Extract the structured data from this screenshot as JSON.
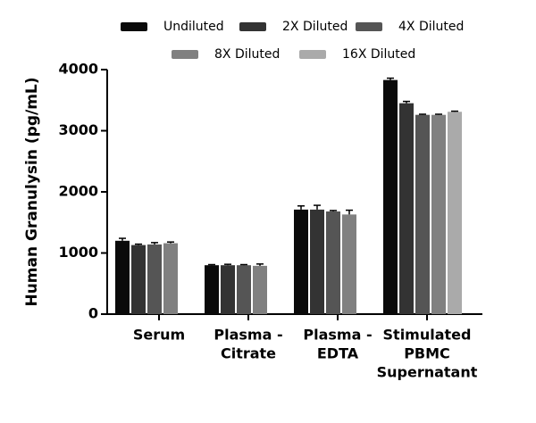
{
  "chart_data": {
    "type": "bar",
    "y_label": "Human Granulysin (pg/mL)",
    "categories": [
      [
        "Serum"
      ],
      [
        "Plasma -",
        "Citrate"
      ],
      [
        "Plasma -",
        "EDTA"
      ],
      [
        "Stimulated",
        "PBMC",
        "Supernatant"
      ]
    ],
    "series": [
      {
        "name": "Undiluted",
        "color": "#0a0a0a",
        "values": [
          1200,
          800,
          1710,
          3830
        ],
        "errors": [
          40,
          10,
          60,
          30
        ]
      },
      {
        "name": "2X Diluted",
        "color": "#333333",
        "values": [
          1130,
          800,
          1710,
          3450
        ],
        "errors": [
          15,
          15,
          70,
          30
        ]
      },
      {
        "name": "4X Diluted",
        "color": "#555555",
        "values": [
          1140,
          800,
          1680,
          3260
        ],
        "errors": [
          30,
          10,
          15,
          10
        ]
      },
      {
        "name": "8X Diluted",
        "color": "#808080",
        "values": [
          1160,
          790,
          1630,
          3260
        ],
        "errors": [
          20,
          30,
          70,
          10
        ]
      },
      {
        "name": "16X Diluted",
        "color": "#aaaaaa",
        "values": [
          null,
          null,
          null,
          3310
        ],
        "errors": [
          null,
          null,
          null,
          10
        ]
      }
    ],
    "ylim": [
      0,
      4000
    ],
    "yticks": [
      0,
      1000,
      2000,
      3000,
      4000
    ],
    "legend": "top"
  }
}
